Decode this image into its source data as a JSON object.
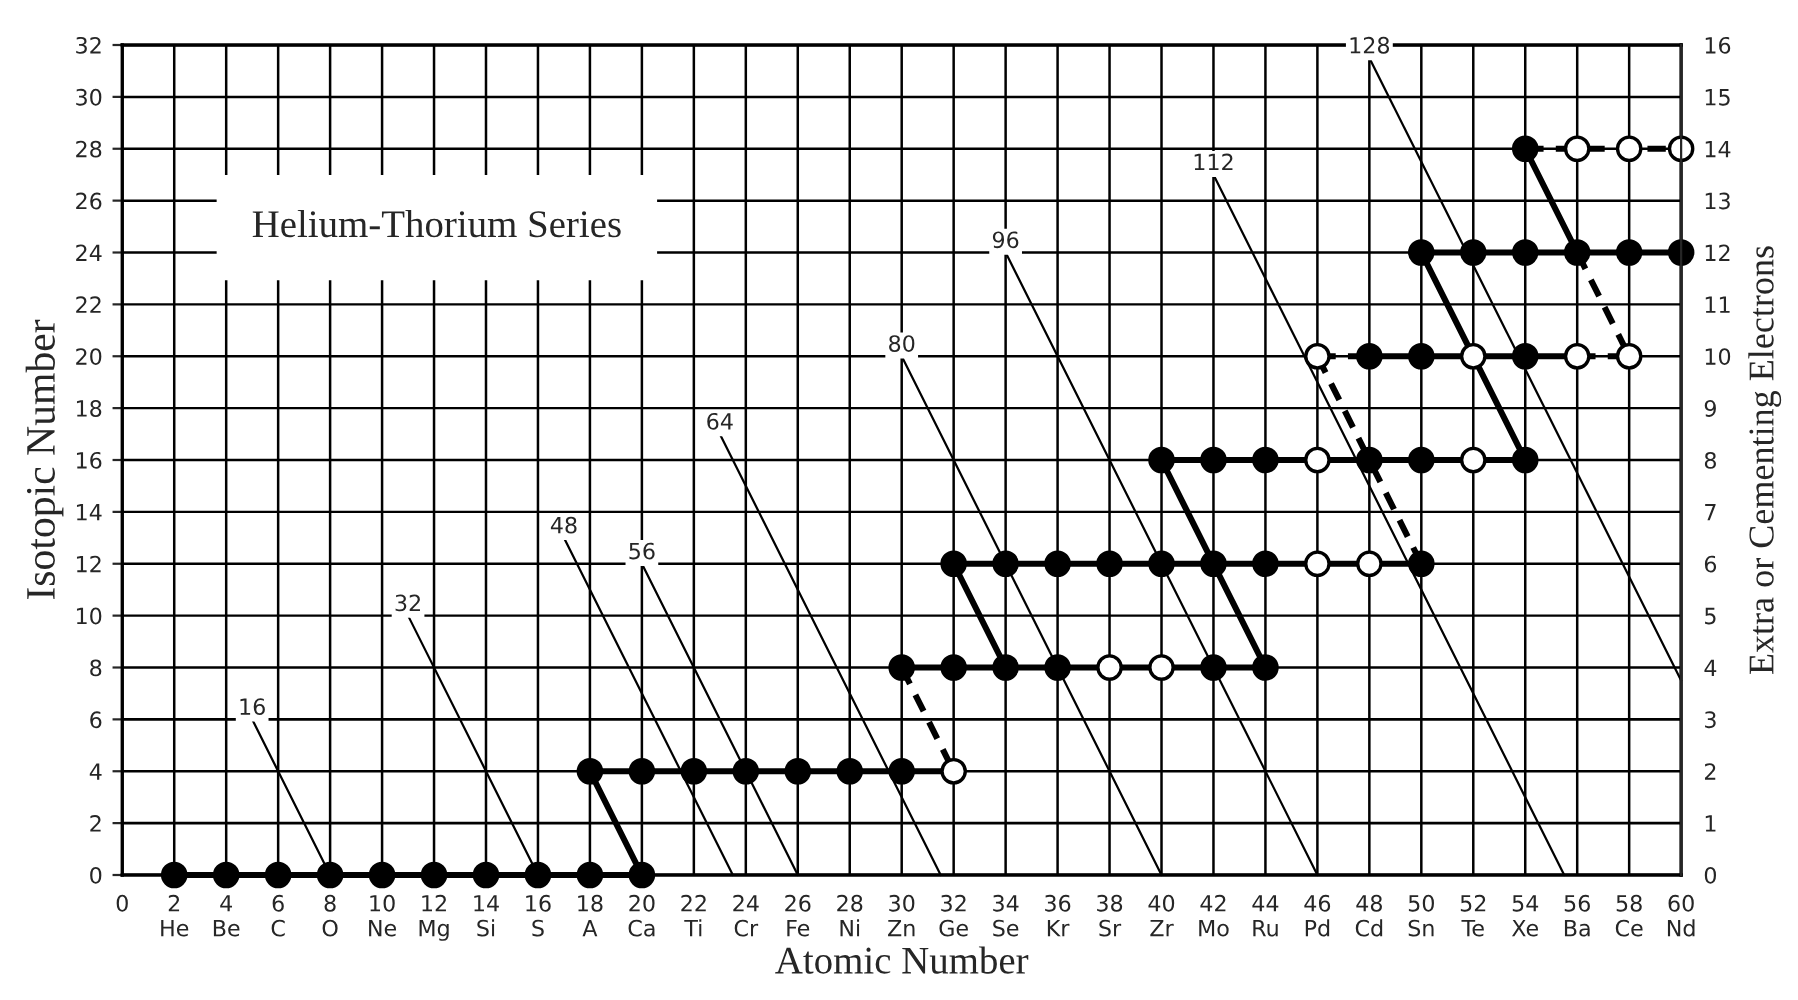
{
  "chart_data": {
    "type": "scatter",
    "title": "Helium-Thorium Series",
    "xlabel": "Atomic Number",
    "ylabel": "Isotopic Number",
    "y2label": "Extra or Cementing Electrons",
    "xlim": [
      0,
      60
    ],
    "ylim": [
      0,
      32
    ],
    "y2lim": [
      0,
      16
    ],
    "xticks": [
      0,
      {
        "value": 2,
        "label": "2\nHe"
      },
      {
        "value": 4,
        "label": "4\nBe"
      },
      {
        "value": 6,
        "label": "6\nC"
      },
      {
        "value": 8,
        "label": "8\nO"
      },
      {
        "value": 10,
        "label": "10\nNe"
      },
      {
        "value": 12,
        "label": "12\nMg"
      },
      {
        "value": 14,
        "label": "14\nSi"
      },
      {
        "value": 16,
        "label": "16\nS"
      },
      {
        "value": 18,
        "label": "18\nA"
      },
      {
        "value": 20,
        "label": "20\nCa"
      },
      {
        "value": 22,
        "label": "22\nTi"
      },
      {
        "value": 24,
        "label": "24\nCr"
      },
      {
        "value": 26,
        "label": "26\nFe"
      },
      {
        "value": 28,
        "label": "28\nNi"
      },
      {
        "value": 30,
        "label": "30\nZn"
      },
      {
        "value": 32,
        "label": "32\nGe"
      },
      {
        "value": 34,
        "label": "34\nSe"
      },
      {
        "value": 36,
        "label": "36\nKr"
      },
      {
        "value": 38,
        "label": "38\nSr"
      },
      {
        "value": 40,
        "label": "40\nZr"
      },
      {
        "value": 42,
        "label": "42\nMo"
      },
      {
        "value": 44,
        "label": "44\nRu"
      },
      {
        "value": 46,
        "label": "46\nPd"
      },
      {
        "value": 48,
        "label": "48\nCd"
      },
      {
        "value": 50,
        "label": "50\nSn"
      },
      {
        "value": 52,
        "label": "52\nTe"
      },
      {
        "value": 54,
        "label": "54\nXe"
      },
      {
        "value": 56,
        "label": "56\nBa"
      },
      {
        "value": 58,
        "label": "58\nCe"
      },
      {
        "value": 60,
        "label": "60\nNd"
      }
    ],
    "yticks": [
      0,
      2,
      4,
      6,
      8,
      10,
      12,
      14,
      16,
      18,
      20,
      22,
      24,
      26,
      28,
      30,
      32
    ],
    "y2ticks": [
      0,
      1,
      2,
      3,
      4,
      5,
      6,
      7,
      8,
      9,
      10,
      11,
      12,
      13,
      14,
      15,
      16
    ],
    "grid": true,
    "legend": false,
    "marker": "none",
    "series": [
      {
        "type": "line",
        "line_style": "solid",
        "color": "#000000",
        "x": [
          2,
          20
        ],
        "values": [
          0,
          0
        ]
      },
      {
        "type": "line",
        "line_style": "solid",
        "color": "#000000",
        "x": [
          18,
          20
        ],
        "values": [
          4,
          0
        ]
      },
      {
        "type": "line",
        "line_style": "solid",
        "color": "#000000",
        "x": [
          18,
          32
        ],
        "values": [
          4,
          4
        ]
      },
      {
        "type": "line",
        "line_style": "dashed",
        "color": "#000000",
        "x": [
          30,
          32
        ],
        "values": [
          8,
          4
        ]
      },
      {
        "type": "line",
        "line_style": "solid",
        "color": "#000000",
        "x": [
          30,
          44
        ],
        "values": [
          8,
          8
        ]
      },
      {
        "type": "line",
        "line_style": "solid",
        "color": "#000000",
        "x": [
          32,
          34
        ],
        "values": [
          12,
          8
        ]
      },
      {
        "type": "line",
        "line_style": "solid",
        "color": "#000000",
        "x": [
          32,
          50
        ],
        "values": [
          12,
          12
        ]
      },
      {
        "type": "line",
        "line_style": "solid",
        "color": "#000000",
        "x": [
          40,
          44
        ],
        "values": [
          16,
          8
        ]
      },
      {
        "type": "line",
        "line_style": "solid",
        "color": "#000000",
        "x": [
          40,
          54
        ],
        "values": [
          16,
          16
        ]
      },
      {
        "type": "line",
        "line_style": "dashed",
        "color": "#000000",
        "x": [
          46,
          50
        ],
        "values": [
          20,
          12
        ]
      },
      {
        "type": "line",
        "line_style": "dashed",
        "color": "#000000",
        "x": [
          46,
          48
        ],
        "values": [
          20,
          20
        ]
      },
      {
        "type": "line",
        "line_style": "solid",
        "color": "#000000",
        "x": [
          48,
          56
        ],
        "values": [
          20,
          20
        ]
      },
      {
        "type": "line",
        "line_style": "dashed",
        "color": "#000000",
        "x": [
          56,
          58
        ],
        "values": [
          20,
          20
        ]
      },
      {
        "type": "line",
        "line_style": "solid",
        "color": "#000000",
        "x": [
          50,
          54
        ],
        "values": [
          24,
          16
        ]
      },
      {
        "type": "line",
        "line_style": "solid",
        "color": "#000000",
        "x": [
          50,
          60
        ],
        "values": [
          24,
          24
        ]
      },
      {
        "type": "line",
        "line_style": "dashed",
        "color": "#000000",
        "x": [
          56,
          58
        ],
        "values": [
          24,
          20
        ]
      },
      {
        "type": "line",
        "line_style": "solid",
        "color": "#000000",
        "x": [
          54,
          56
        ],
        "values": [
          28,
          24
        ]
      },
      {
        "type": "line",
        "line_style": "dashed",
        "color": "#000000",
        "x": [
          54,
          60
        ],
        "values": [
          28,
          28
        ]
      },
      {
        "type": "line",
        "name": "16",
        "line_style": "solid",
        "color": "#000000",
        "x": [
          5,
          8
        ],
        "values": [
          6,
          0
        ]
      },
      {
        "type": "line",
        "name": "32",
        "line_style": "solid",
        "color": "#000000",
        "x": [
          11,
          16
        ],
        "values": [
          10,
          0
        ]
      },
      {
        "type": "line",
        "name": "48",
        "line_style": "solid",
        "color": "#000000",
        "x": [
          17,
          23.5
        ],
        "values": [
          13,
          0
        ]
      },
      {
        "type": "line",
        "name": "56",
        "line_style": "solid",
        "color": "#000000",
        "x": [
          20,
          26
        ],
        "values": [
          12,
          0
        ]
      },
      {
        "type": "line",
        "name": "64",
        "line_style": "solid",
        "color": "#000000",
        "x": [
          23,
          31.5
        ],
        "values": [
          17,
          0
        ]
      },
      {
        "type": "line",
        "name": "80",
        "line_style": "solid",
        "color": "#000000",
        "x": [
          30,
          40
        ],
        "values": [
          20,
          0
        ]
      },
      {
        "type": "line",
        "name": "96",
        "line_style": "solid",
        "color": "#000000",
        "x": [
          34,
          46
        ],
        "values": [
          24,
          0
        ]
      },
      {
        "type": "line",
        "name": "112",
        "line_style": "solid",
        "color": "#000000",
        "x": [
          42,
          55.5
        ],
        "values": [
          27,
          0
        ]
      },
      {
        "type": "line",
        "name": "128",
        "line_style": "solid",
        "color": "#000000",
        "x": [
          48,
          60
        ],
        "values": [
          31.5,
          7.5
        ]
      },
      {
        "marker": "circle",
        "color": "#000000",
        "x": [
          2,
          4,
          6,
          8,
          10,
          12,
          14,
          16,
          18,
          20,
          18,
          20,
          22,
          24,
          26,
          28,
          30,
          30,
          32,
          34,
          36,
          42,
          44,
          32,
          34,
          36,
          38,
          40,
          42,
          44,
          50,
          40,
          42,
          44,
          48,
          50,
          54,
          48,
          50,
          54,
          50,
          52,
          54,
          56,
          58,
          60,
          54
        ],
        "values": [
          0,
          0,
          0,
          0,
          0,
          0,
          0,
          0,
          0,
          0,
          4,
          4,
          4,
          4,
          4,
          4,
          4,
          8,
          8,
          8,
          8,
          8,
          8,
          12,
          12,
          12,
          12,
          12,
          12,
          12,
          12,
          16,
          16,
          16,
          16,
          16,
          16,
          20,
          20,
          20,
          24,
          24,
          24,
          24,
          24,
          24,
          28
        ]
      },
      {
        "marker": "circle",
        "color": "#ffffff",
        "x": [
          32,
          38,
          40,
          46,
          48,
          46,
          52,
          46,
          52,
          56,
          58,
          56,
          58,
          60
        ],
        "values": [
          4,
          8,
          8,
          12,
          12,
          16,
          16,
          20,
          20,
          20,
          20,
          28,
          28,
          28
        ]
      }
    ]
  }
}
